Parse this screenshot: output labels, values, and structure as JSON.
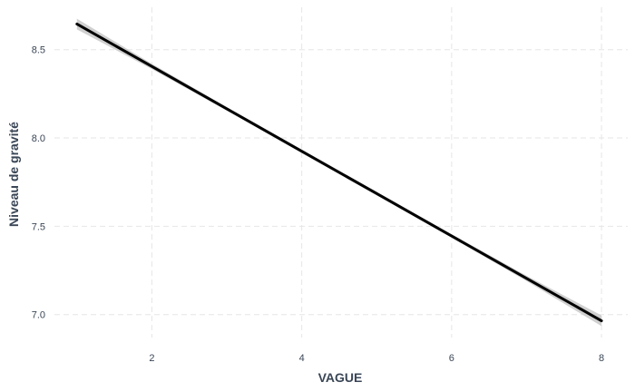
{
  "chart_data": {
    "type": "line",
    "title": "",
    "xlabel": "VAGUE",
    "ylabel": "Niveau de gravité",
    "xlim": [
      0.7,
      8.35
    ],
    "ylim": [
      6.87,
      8.74
    ],
    "x_ticks": [
      2,
      4,
      6,
      8
    ],
    "x_tick_labels": [
      "2",
      "4",
      "6",
      "8"
    ],
    "y_ticks": [
      7.0,
      7.5,
      8.0,
      8.5
    ],
    "y_tick_labels": [
      "7.0",
      "7.5",
      "8.0",
      "8.5"
    ],
    "grid": true,
    "series": [
      {
        "x": [
          1,
          2,
          3,
          4,
          5,
          6,
          7,
          8
        ],
        "y": [
          8.645,
          8.405,
          8.165,
          7.925,
          7.685,
          7.445,
          7.205,
          6.965
        ],
        "ci_lower": [
          8.615,
          8.39,
          8.155,
          7.915,
          7.675,
          7.435,
          7.19,
          6.935
        ],
        "ci_upper": [
          8.675,
          8.42,
          8.175,
          7.935,
          7.695,
          7.455,
          7.22,
          6.995
        ],
        "color": "#000000",
        "band_color": "#c8c8c8"
      }
    ]
  }
}
